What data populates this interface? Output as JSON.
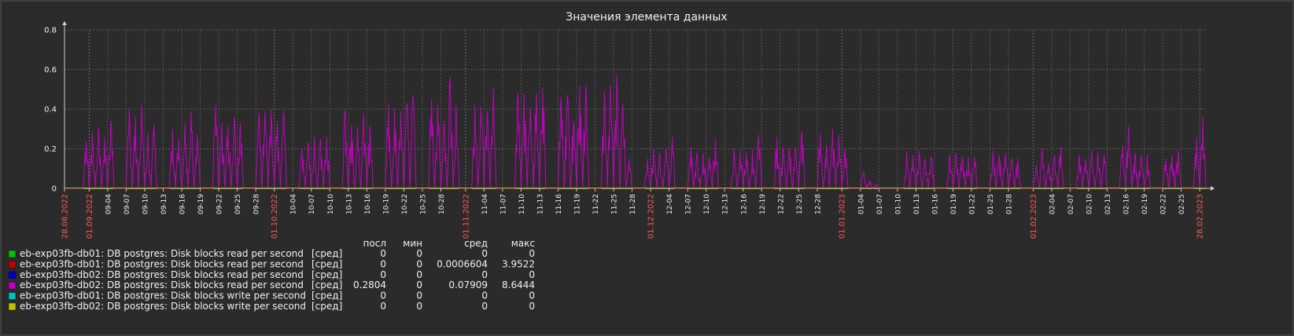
{
  "chart_data": {
    "type": "line",
    "title": "Значения элемента данных",
    "ylim": [
      0,
      0.8
    ],
    "y_ticks": [
      "0",
      "0.2",
      "0.4",
      "0.6",
      "0.8"
    ],
    "x_range": [
      "2022-08-28",
      "2023-02-28"
    ],
    "grid": true,
    "x_ticks": [
      {
        "label": "28.08.2022",
        "date": "2022-08-28",
        "major": true
      },
      {
        "label": "01.09.2022",
        "date": "2022-09-01",
        "major": true
      },
      {
        "label": "09-04",
        "date": "2022-09-04"
      },
      {
        "label": "09-07",
        "date": "2022-09-07"
      },
      {
        "label": "09-10",
        "date": "2022-09-10"
      },
      {
        "label": "09-13",
        "date": "2022-09-13"
      },
      {
        "label": "09-16",
        "date": "2022-09-16"
      },
      {
        "label": "09-19",
        "date": "2022-09-19"
      },
      {
        "label": "09-22",
        "date": "2022-09-22"
      },
      {
        "label": "09-25",
        "date": "2022-09-25"
      },
      {
        "label": "09-28",
        "date": "2022-09-28"
      },
      {
        "label": "01.10.2022",
        "date": "2022-10-01",
        "major": true
      },
      {
        "label": "10-04",
        "date": "2022-10-04"
      },
      {
        "label": "10-07",
        "date": "2022-10-07"
      },
      {
        "label": "10-10",
        "date": "2022-10-10"
      },
      {
        "label": "10-13",
        "date": "2022-10-13"
      },
      {
        "label": "10-16",
        "date": "2022-10-16"
      },
      {
        "label": "10-19",
        "date": "2022-10-19"
      },
      {
        "label": "10-22",
        "date": "2022-10-22"
      },
      {
        "label": "10-25",
        "date": "2022-10-25"
      },
      {
        "label": "10-28",
        "date": "2022-10-28"
      },
      {
        "label": "01.11.2022",
        "date": "2022-11-01",
        "major": true
      },
      {
        "label": "11-04",
        "date": "2022-11-04"
      },
      {
        "label": "11-07",
        "date": "2022-11-07"
      },
      {
        "label": "11-10",
        "date": "2022-11-10"
      },
      {
        "label": "11-13",
        "date": "2022-11-13"
      },
      {
        "label": "11-16",
        "date": "2022-11-16"
      },
      {
        "label": "11-19",
        "date": "2022-11-19"
      },
      {
        "label": "11-22",
        "date": "2022-11-22"
      },
      {
        "label": "11-25",
        "date": "2022-11-25"
      },
      {
        "label": "11-28",
        "date": "2022-11-28"
      },
      {
        "label": "01.12.2022",
        "date": "2022-12-01",
        "major": true
      },
      {
        "label": "12-04",
        "date": "2022-12-04"
      },
      {
        "label": "12-07",
        "date": "2022-12-07"
      },
      {
        "label": "12-10",
        "date": "2022-12-10"
      },
      {
        "label": "12-13",
        "date": "2022-12-13"
      },
      {
        "label": "12-16",
        "date": "2022-12-16"
      },
      {
        "label": "12-19",
        "date": "2022-12-19"
      },
      {
        "label": "12-22",
        "date": "2022-12-22"
      },
      {
        "label": "12-25",
        "date": "2022-12-25"
      },
      {
        "label": "12-28",
        "date": "2022-12-28"
      },
      {
        "label": "01.01.2023",
        "date": "2023-01-01",
        "major": true
      },
      {
        "label": "01-04",
        "date": "2023-01-04"
      },
      {
        "label": "01-07",
        "date": "2023-01-07"
      },
      {
        "label": "01-10",
        "date": "2023-01-10"
      },
      {
        "label": "01-13",
        "date": "2023-01-13"
      },
      {
        "label": "01-16",
        "date": "2023-01-16"
      },
      {
        "label": "01-19",
        "date": "2023-01-19"
      },
      {
        "label": "01-22",
        "date": "2023-01-22"
      },
      {
        "label": "01-25",
        "date": "2023-01-25"
      },
      {
        "label": "01-28",
        "date": "2023-01-28"
      },
      {
        "label": "01.02.2023",
        "date": "2023-02-01",
        "major": true
      },
      {
        "label": "02-04",
        "date": "2023-02-04"
      },
      {
        "label": "02-07",
        "date": "2023-02-07"
      },
      {
        "label": "02-10",
        "date": "2023-02-10"
      },
      {
        "label": "02-13",
        "date": "2023-02-13"
      },
      {
        "label": "02-16",
        "date": "2023-02-16"
      },
      {
        "label": "02-19",
        "date": "2023-02-19"
      },
      {
        "label": "02-22",
        "date": "2023-02-22"
      },
      {
        "label": "02-25",
        "date": "2023-02-25"
      },
      {
        "label": "28.02.2023",
        "date": "2023-02-28",
        "major": true
      }
    ],
    "legend_headers": [
      "посл",
      "мин",
      "сред",
      "макс"
    ],
    "series": [
      {
        "name": "eb-exp03fb-db01: DB postgres: Disk blocks read per second",
        "func": "[сред]",
        "color": "#00c000",
        "last": "0",
        "min": "0",
        "avg": "0",
        "max": "0"
      },
      {
        "name": "eb-exp03fb-db01: DB postgres: Disk blocks read per second",
        "func": "[сред]",
        "color": "#c00000",
        "last": "0",
        "min": "0",
        "avg": "0.0006604",
        "max": "3.9522"
      },
      {
        "name": "eb-exp03fb-db02: DB postgres: Disk blocks read per second",
        "func": "[сред]",
        "color": "#0000c8",
        "last": "0",
        "min": "0",
        "avg": "0",
        "max": "0"
      },
      {
        "name": "eb-exp03fb-db02: DB postgres: Disk blocks read per second",
        "func": "[сред]",
        "color": "#c000c0",
        "last": "0.2804",
        "min": "0",
        "avg": "0.07909",
        "max": "8.6444",
        "daily_peaks": [
          [
            "2022-08-31",
            0.24
          ],
          [
            "2022-09-01",
            0.28
          ],
          [
            "2022-09-02",
            0.31
          ],
          [
            "2022-09-03",
            0.26
          ],
          [
            "2022-09-04",
            0.34
          ],
          [
            "2022-09-07",
            0.4
          ],
          [
            "2022-09-08",
            0.36
          ],
          [
            "2022-09-09",
            0.42
          ],
          [
            "2022-09-10",
            0.28
          ],
          [
            "2022-09-11",
            0.32
          ],
          [
            "2022-09-14",
            0.3
          ],
          [
            "2022-09-15",
            0.25
          ],
          [
            "2022-09-16",
            0.33
          ],
          [
            "2022-09-17",
            0.39
          ],
          [
            "2022-09-18",
            0.27
          ],
          [
            "2022-09-21",
            0.42
          ],
          [
            "2022-09-22",
            0.33
          ],
          [
            "2022-09-23",
            0.32
          ],
          [
            "2022-09-24",
            0.36
          ],
          [
            "2022-09-25",
            0.33
          ],
          [
            "2022-09-28",
            0.38
          ],
          [
            "2022-09-29",
            0.39
          ],
          [
            "2022-09-30",
            0.4
          ],
          [
            "2022-10-01",
            0.34
          ],
          [
            "2022-10-02",
            0.39
          ],
          [
            "2022-10-05",
            0.2
          ],
          [
            "2022-10-06",
            0.23
          ],
          [
            "2022-10-07",
            0.26
          ],
          [
            "2022-10-08",
            0.25
          ],
          [
            "2022-10-09",
            0.26
          ],
          [
            "2022-10-12",
            0.4
          ],
          [
            "2022-10-13",
            0.32
          ],
          [
            "2022-10-14",
            0.31
          ],
          [
            "2022-10-15",
            0.38
          ],
          [
            "2022-10-16",
            0.32
          ],
          [
            "2022-10-19",
            0.43
          ],
          [
            "2022-10-20",
            0.4
          ],
          [
            "2022-10-21",
            0.39
          ],
          [
            "2022-10-22",
            0.43
          ],
          [
            "2022-10-23",
            0.47
          ],
          [
            "2022-10-26",
            0.45
          ],
          [
            "2022-10-27",
            0.42
          ],
          [
            "2022-10-28",
            0.34
          ],
          [
            "2022-10-29",
            0.56
          ],
          [
            "2022-10-30",
            0.42
          ],
          [
            "2022-11-02",
            0.42
          ],
          [
            "2022-11-03",
            0.41
          ],
          [
            "2022-11-04",
            0.39
          ],
          [
            "2022-11-05",
            0.51
          ],
          [
            "2022-11-09",
            0.48
          ],
          [
            "2022-11-10",
            0.48
          ],
          [
            "2022-11-11",
            0.41
          ],
          [
            "2022-11-12",
            0.48
          ],
          [
            "2022-11-13",
            0.51
          ],
          [
            "2022-11-16",
            0.46
          ],
          [
            "2022-11-17",
            0.47
          ],
          [
            "2022-11-18",
            0.34
          ],
          [
            "2022-11-19",
            0.52
          ],
          [
            "2022-11-20",
            0.52
          ],
          [
            "2022-11-23",
            0.49
          ],
          [
            "2022-11-24",
            0.52
          ],
          [
            "2022-11-25",
            0.57
          ],
          [
            "2022-11-26",
            0.43
          ],
          [
            "2022-11-27",
            0.15
          ],
          [
            "2022-11-30",
            0.15
          ],
          [
            "2022-12-01",
            0.2
          ],
          [
            "2022-12-02",
            0.18
          ],
          [
            "2022-12-03",
            0.2
          ],
          [
            "2022-12-04",
            0.26
          ],
          [
            "2022-12-07",
            0.21
          ],
          [
            "2022-12-08",
            0.18
          ],
          [
            "2022-12-09",
            0.18
          ],
          [
            "2022-12-10",
            0.16
          ],
          [
            "2022-12-11",
            0.25
          ],
          [
            "2022-12-14",
            0.2
          ],
          [
            "2022-12-15",
            0.19
          ],
          [
            "2022-12-16",
            0.18
          ],
          [
            "2022-12-17",
            0.2
          ],
          [
            "2022-12-18",
            0.27
          ],
          [
            "2022-12-21",
            0.26
          ],
          [
            "2022-12-22",
            0.21
          ],
          [
            "2022-12-23",
            0.2
          ],
          [
            "2022-12-24",
            0.21
          ],
          [
            "2022-12-25",
            0.29
          ],
          [
            "2022-12-28",
            0.28
          ],
          [
            "2022-12-29",
            0.22
          ],
          [
            "2022-12-30",
            0.3
          ],
          [
            "2022-12-31",
            0.27
          ],
          [
            "2023-01-01",
            0.2
          ],
          [
            "2023-01-04",
            0.08
          ],
          [
            "2023-01-05",
            0.04
          ],
          [
            "2023-01-06",
            0.02
          ],
          [
            "2023-01-11",
            0.19
          ],
          [
            "2023-01-12",
            0.17
          ],
          [
            "2023-01-13",
            0.19
          ],
          [
            "2023-01-14",
            0.15
          ],
          [
            "2023-01-15",
            0.16
          ],
          [
            "2023-01-18",
            0.17
          ],
          [
            "2023-01-19",
            0.18
          ],
          [
            "2023-01-20",
            0.16
          ],
          [
            "2023-01-21",
            0.16
          ],
          [
            "2023-01-22",
            0.16
          ],
          [
            "2023-01-25",
            0.19
          ],
          [
            "2023-01-26",
            0.17
          ],
          [
            "2023-01-27",
            0.18
          ],
          [
            "2023-01-28",
            0.15
          ],
          [
            "2023-01-29",
            0.15
          ],
          [
            "2023-02-01",
            0.12
          ],
          [
            "2023-02-02",
            0.2
          ],
          [
            "2023-02-03",
            0.13
          ],
          [
            "2023-02-04",
            0.17
          ],
          [
            "2023-02-05",
            0.21
          ],
          [
            "2023-02-08",
            0.17
          ],
          [
            "2023-02-09",
            0.15
          ],
          [
            "2023-02-10",
            0.19
          ],
          [
            "2023-02-11",
            0.18
          ],
          [
            "2023-02-12",
            0.17
          ],
          [
            "2023-02-15",
            0.22
          ],
          [
            "2023-02-16",
            0.32
          ],
          [
            "2023-02-17",
            0.18
          ],
          [
            "2023-02-18",
            0.17
          ],
          [
            "2023-02-19",
            0.17
          ],
          [
            "2023-02-22",
            0.15
          ],
          [
            "2023-02-23",
            0.17
          ],
          [
            "2023-02-24",
            0.19
          ],
          [
            "2023-02-27",
            0.26
          ],
          [
            "2023-02-28",
            0.36
          ]
        ]
      },
      {
        "name": "eb-exp03fb-db01: DB postgres: Disk blocks write per second",
        "func": "[сред]",
        "color": "#00c0c0",
        "last": "0",
        "min": "0",
        "avg": "0",
        "max": "0"
      },
      {
        "name": "eb-exp03fb-db02: DB postgres: Disk blocks write per second",
        "func": "[сред]",
        "color": "#c0c000",
        "last": "0",
        "min": "0",
        "avg": "0",
        "max": "0"
      }
    ]
  }
}
